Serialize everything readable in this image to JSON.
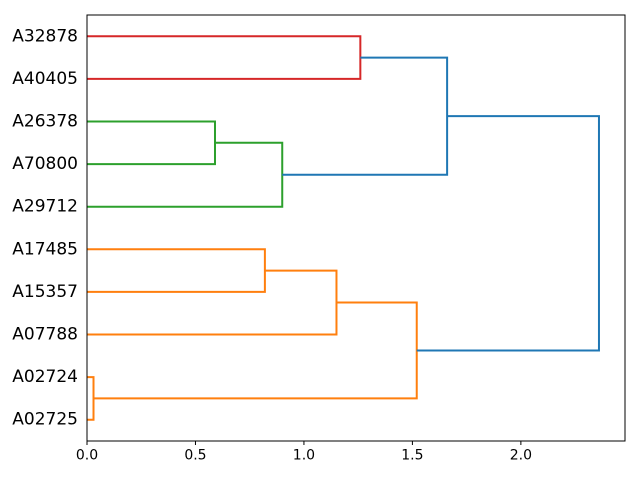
{
  "figure": {
    "background": "#ffffff",
    "title": ""
  },
  "chart_data": {
    "type": "dendrogram",
    "orientation": "right",
    "title": "",
    "xlabel": "",
    "ylabel": "",
    "grid": false,
    "legend": null,
    "xlim": [
      0,
      2.48
    ],
    "ylim": [
      0,
      100
    ],
    "x_ticks": [
      {
        "value": 0.0,
        "label": "0.0"
      },
      {
        "value": 0.5,
        "label": "0.5"
      },
      {
        "value": 1.0,
        "label": "1.0"
      },
      {
        "value": 1.5,
        "label": "1.5"
      },
      {
        "value": 2.0,
        "label": "2.0"
      }
    ],
    "leaves": [
      {
        "label": "A32878",
        "position": 5
      },
      {
        "label": "A40405",
        "position": 15
      },
      {
        "label": "A26378",
        "position": 25
      },
      {
        "label": "A70800",
        "position": 35
      },
      {
        "label": "A29712",
        "position": 45
      },
      {
        "label": "A17485",
        "position": 55
      },
      {
        "label": "A15357",
        "position": 65
      },
      {
        "label": "A07788",
        "position": 75
      },
      {
        "label": "A02724",
        "position": 85
      },
      {
        "label": "A02725",
        "position": 95
      }
    ],
    "links": [
      {
        "name": "A32878+A40405",
        "distance": 1.26,
        "y_top": 5,
        "y_bot": 15,
        "child_top_distance": 0,
        "child_bot_distance": 0,
        "color": "#d62728"
      },
      {
        "name": "A26378+A70800",
        "distance": 0.59,
        "y_top": 25,
        "y_bot": 35,
        "child_top_distance": 0,
        "child_bot_distance": 0,
        "color": "#2ca02c"
      },
      {
        "name": "(A26378,A70800)+A29712",
        "distance": 0.9,
        "y_top": 30,
        "y_bot": 45,
        "child_top_distance": 0.59,
        "child_bot_distance": 0,
        "color": "#2ca02c"
      },
      {
        "name": "A17485+A15357",
        "distance": 0.82,
        "y_top": 55,
        "y_bot": 65,
        "child_top_distance": 0,
        "child_bot_distance": 0,
        "color": "#ff7f0e"
      },
      {
        "name": "(A17485,A15357)+A07788",
        "distance": 1.15,
        "y_top": 60,
        "y_bot": 75,
        "child_top_distance": 0.82,
        "child_bot_distance": 0,
        "color": "#ff7f0e"
      },
      {
        "name": "A02724+A02725",
        "distance": 0.03,
        "y_top": 85,
        "y_bot": 95,
        "child_top_distance": 0,
        "child_bot_distance": 0,
        "color": "#ff7f0e"
      },
      {
        "name": "(A17485,A15357,A07788)+(A02724,A02725)",
        "distance": 1.52,
        "y_top": 67.5,
        "y_bot": 90,
        "child_top_distance": 1.15,
        "child_bot_distance": 0.03,
        "color": "#ff7f0e"
      },
      {
        "name": "(A32878,A40405)+(A26378,A70800,A29712)",
        "distance": 1.66,
        "y_top": 10,
        "y_bot": 37.5,
        "child_top_distance": 1.26,
        "child_bot_distance": 0.9,
        "color": "#1f77b4"
      },
      {
        "name": "root",
        "distance": 2.36,
        "y_top": 23.75,
        "y_bot": 78.75,
        "child_top_distance": 1.66,
        "child_bot_distance": 1.52,
        "color": "#1f77b4"
      }
    ],
    "colors": {
      "above_threshold": "#1f77b4",
      "cluster_red": "#d62728",
      "cluster_green": "#2ca02c",
      "cluster_orange": "#ff7f0e",
      "axis": "#000000"
    }
  }
}
